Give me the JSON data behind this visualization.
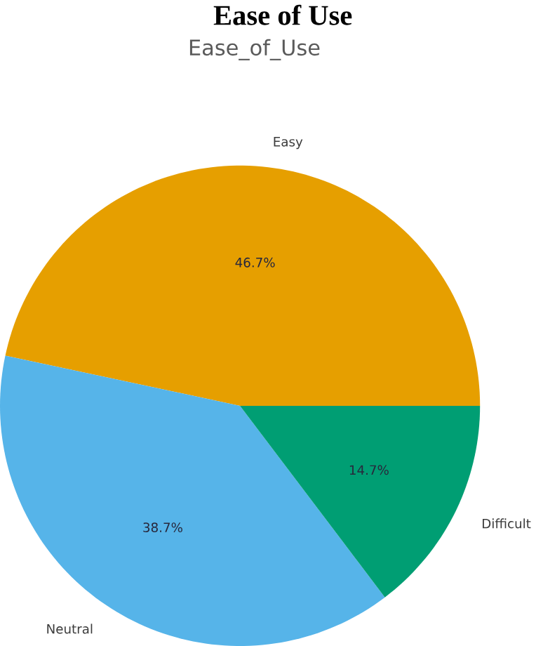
{
  "chart_data": {
    "type": "pie",
    "title": "Ease of Use",
    "subtitle": "Ease_of_Use",
    "categories": [
      "Easy",
      "Neutral",
      "Difficult"
    ],
    "values": [
      46.7,
      38.7,
      14.7
    ],
    "value_labels": [
      "46.7%",
      "38.7%",
      "14.7%"
    ],
    "colors": [
      "#e69f00",
      "#56b4e9",
      "#009e73"
    ]
  }
}
